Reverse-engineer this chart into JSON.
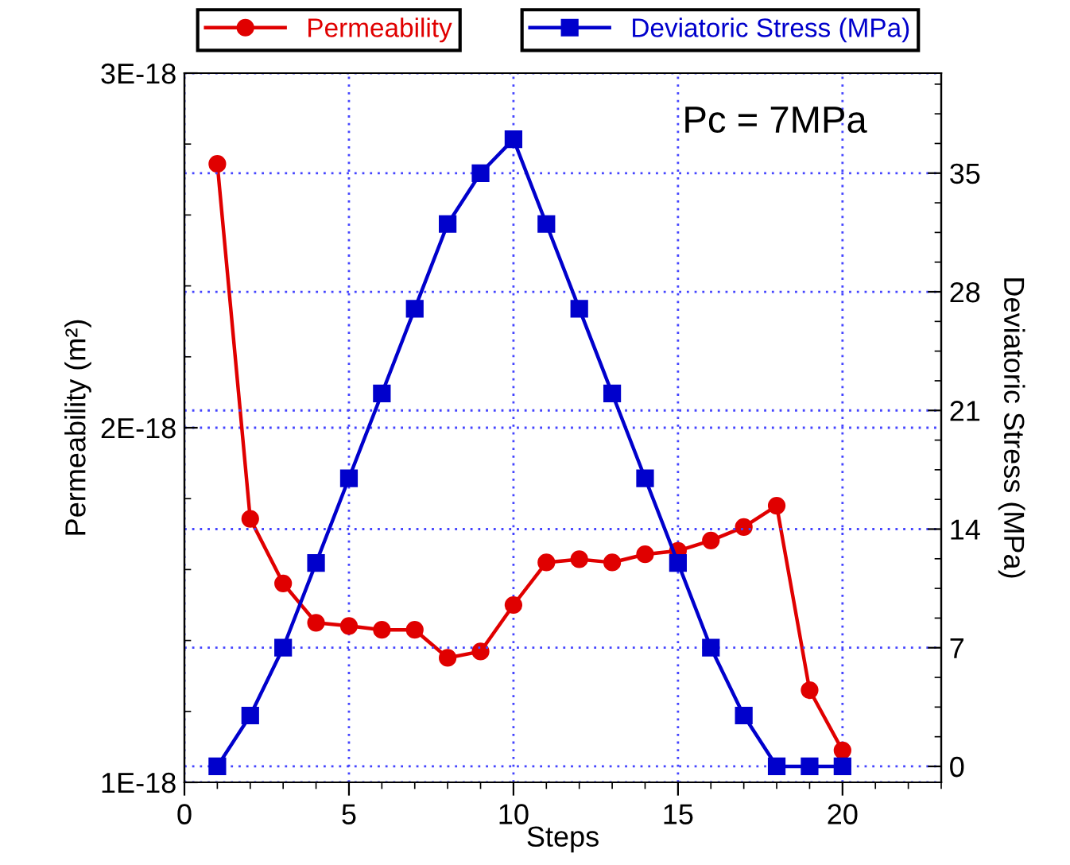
{
  "chart_data": {
    "type": "line",
    "xlabel": "Steps",
    "ylabel": "Permeability (m²)",
    "y2label": "Deviatoric Stress (MPa)",
    "annotations": [
      "Pc = 7MPa"
    ],
    "x": [
      1,
      2,
      3,
      4,
      5,
      6,
      7,
      8,
      9,
      10,
      11,
      12,
      13,
      14,
      15,
      16,
      17,
      18,
      19,
      20
    ],
    "series": [
      {
        "name": "Permeability",
        "color": "#e00000",
        "marker": "circle",
        "values": [
          2.744e-18,
          1.743e-18,
          1.561e-18,
          1.45e-18,
          1.441e-18,
          1.43e-18,
          1.43e-18,
          1.351e-18,
          1.369e-18,
          1.5e-18,
          1.62e-18,
          1.629e-18,
          1.62e-18,
          1.643e-18,
          1.653e-18,
          1.682e-18,
          1.72e-18,
          1.78e-18,
          1.26e-18,
          1.09e-18
        ]
      },
      {
        "name": "Deviatoric Stress (MPa)",
        "color": "#0000cc",
        "marker": "square",
        "axis": "y2",
        "values": [
          0,
          3,
          7,
          12,
          17,
          22,
          27,
          32,
          35,
          37,
          32,
          27,
          22,
          17,
          12,
          7,
          3,
          0,
          0,
          0
        ]
      }
    ],
    "xlim": [
      0,
      23
    ],
    "xticks": [
      0,
      5,
      10,
      15,
      20
    ],
    "ylim": [
      1e-18,
      3e-18
    ],
    "yticks": [
      {
        "value": 1e-18,
        "label": "1E-18"
      },
      {
        "value": 2e-18,
        "label": "2E-18"
      },
      {
        "value": 3e-18,
        "label": "3E-18"
      }
    ],
    "y2lim": [
      -0.94,
      40.9
    ],
    "y2ticks": [
      0,
      7,
      14,
      21,
      28,
      35
    ],
    "grid": true,
    "legend": "top"
  }
}
